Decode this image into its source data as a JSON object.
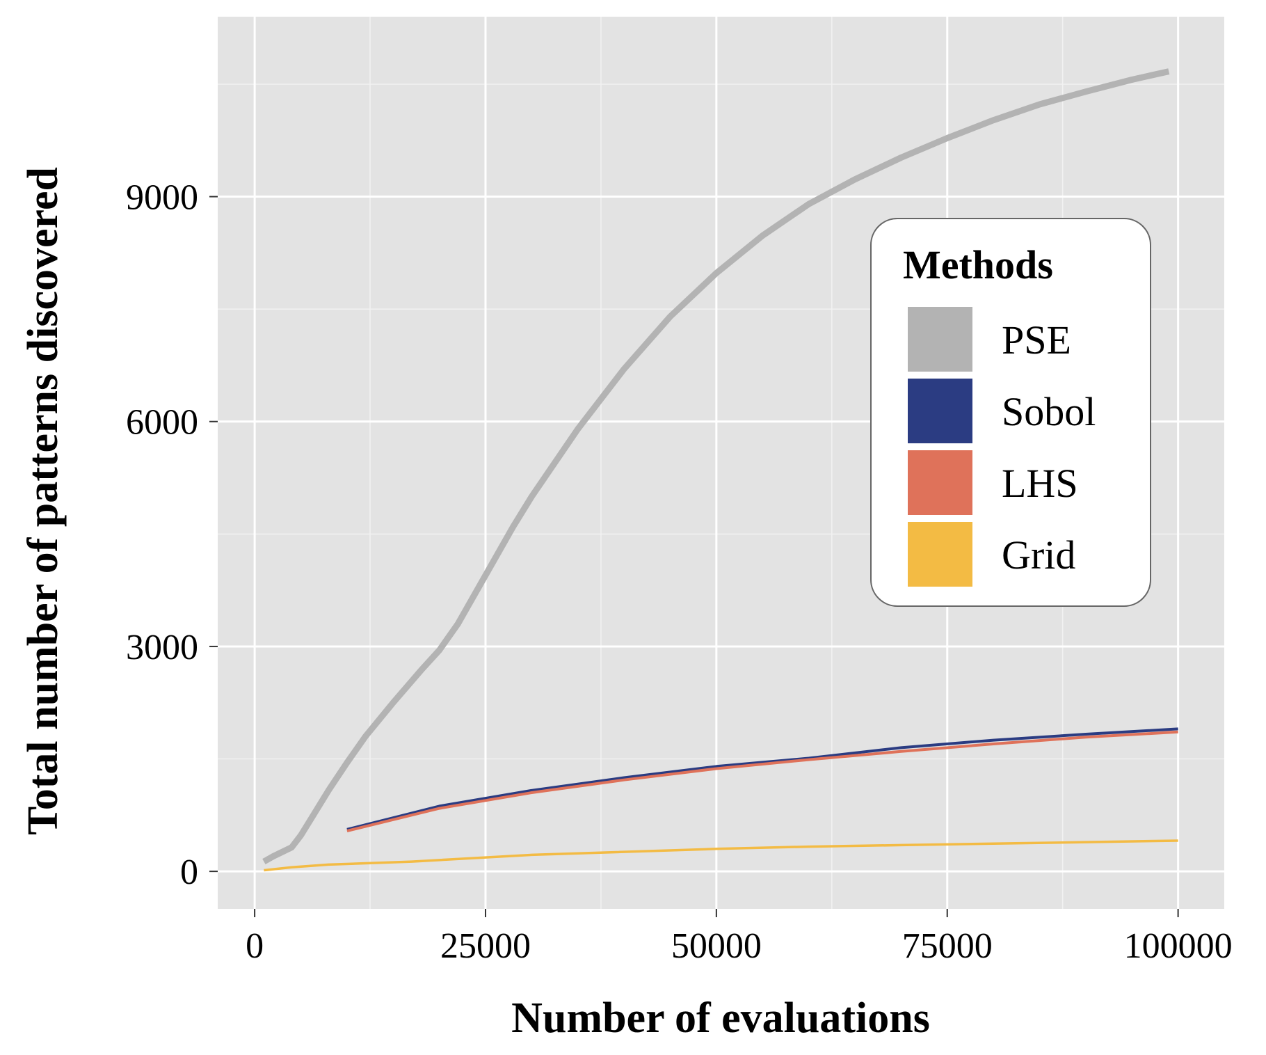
{
  "chart_data": {
    "type": "line",
    "title": "",
    "xlabel": "Number of evaluations",
    "ylabel": "Total number of patterns discovered",
    "xlim": [
      -4000,
      105000
    ],
    "ylim": [
      -500,
      11400
    ],
    "x_ticks": [
      0,
      25000,
      50000,
      75000,
      100000
    ],
    "x_tick_labels": [
      "0",
      "25000",
      "50000",
      "75000",
      "100000"
    ],
    "y_ticks": [
      0,
      3000,
      6000,
      9000
    ],
    "y_tick_labels": [
      "0",
      "3000",
      "6000",
      "9000"
    ],
    "grid": true,
    "background_color": "#e3e3e3",
    "legend": {
      "title": "Methods",
      "placement": "right",
      "entries": [
        "PSE",
        "Sobol",
        "LHS",
        "Grid"
      ]
    },
    "series": [
      {
        "name": "PSE",
        "color": "#b3b3b3",
        "x": [
          1000,
          2000,
          4000,
          5000,
          6000,
          8000,
          10000,
          12000,
          15000,
          18000,
          20000,
          22000,
          25000,
          28000,
          30000,
          35000,
          40000,
          45000,
          50000,
          55000,
          60000,
          65000,
          70000,
          75000,
          80000,
          85000,
          90000,
          95000,
          99000
        ],
        "values": [
          130,
          200,
          320,
          480,
          680,
          1080,
          1450,
          1800,
          2250,
          2680,
          2950,
          3300,
          3950,
          4600,
          5000,
          5900,
          6700,
          7400,
          7980,
          8480,
          8900,
          9230,
          9520,
          9780,
          10020,
          10230,
          10400,
          10560,
          10670
        ]
      },
      {
        "name": "Sobol",
        "color": "#2b3c82",
        "x": [
          10000,
          20000,
          30000,
          40000,
          50000,
          60000,
          70000,
          80000,
          90000,
          100000
        ],
        "values": [
          560,
          870,
          1080,
          1250,
          1400,
          1510,
          1650,
          1750,
          1830,
          1900
        ]
      },
      {
        "name": "LHS",
        "color": "#df725a",
        "x": [
          10000,
          20000,
          30000,
          40000,
          50000,
          60000,
          70000,
          80000,
          90000,
          100000
        ],
        "values": [
          540,
          840,
          1050,
          1220,
          1370,
          1490,
          1600,
          1700,
          1790,
          1860
        ]
      },
      {
        "name": "Grid",
        "color": "#f3bb44",
        "x": [
          1000,
          4000,
          8000,
          17000,
          30000,
          50000,
          60000,
          70000,
          80000,
          90000,
          100000
        ],
        "values": [
          15,
          55,
          90,
          130,
          220,
          300,
          330,
          350,
          370,
          390,
          410
        ]
      }
    ]
  }
}
